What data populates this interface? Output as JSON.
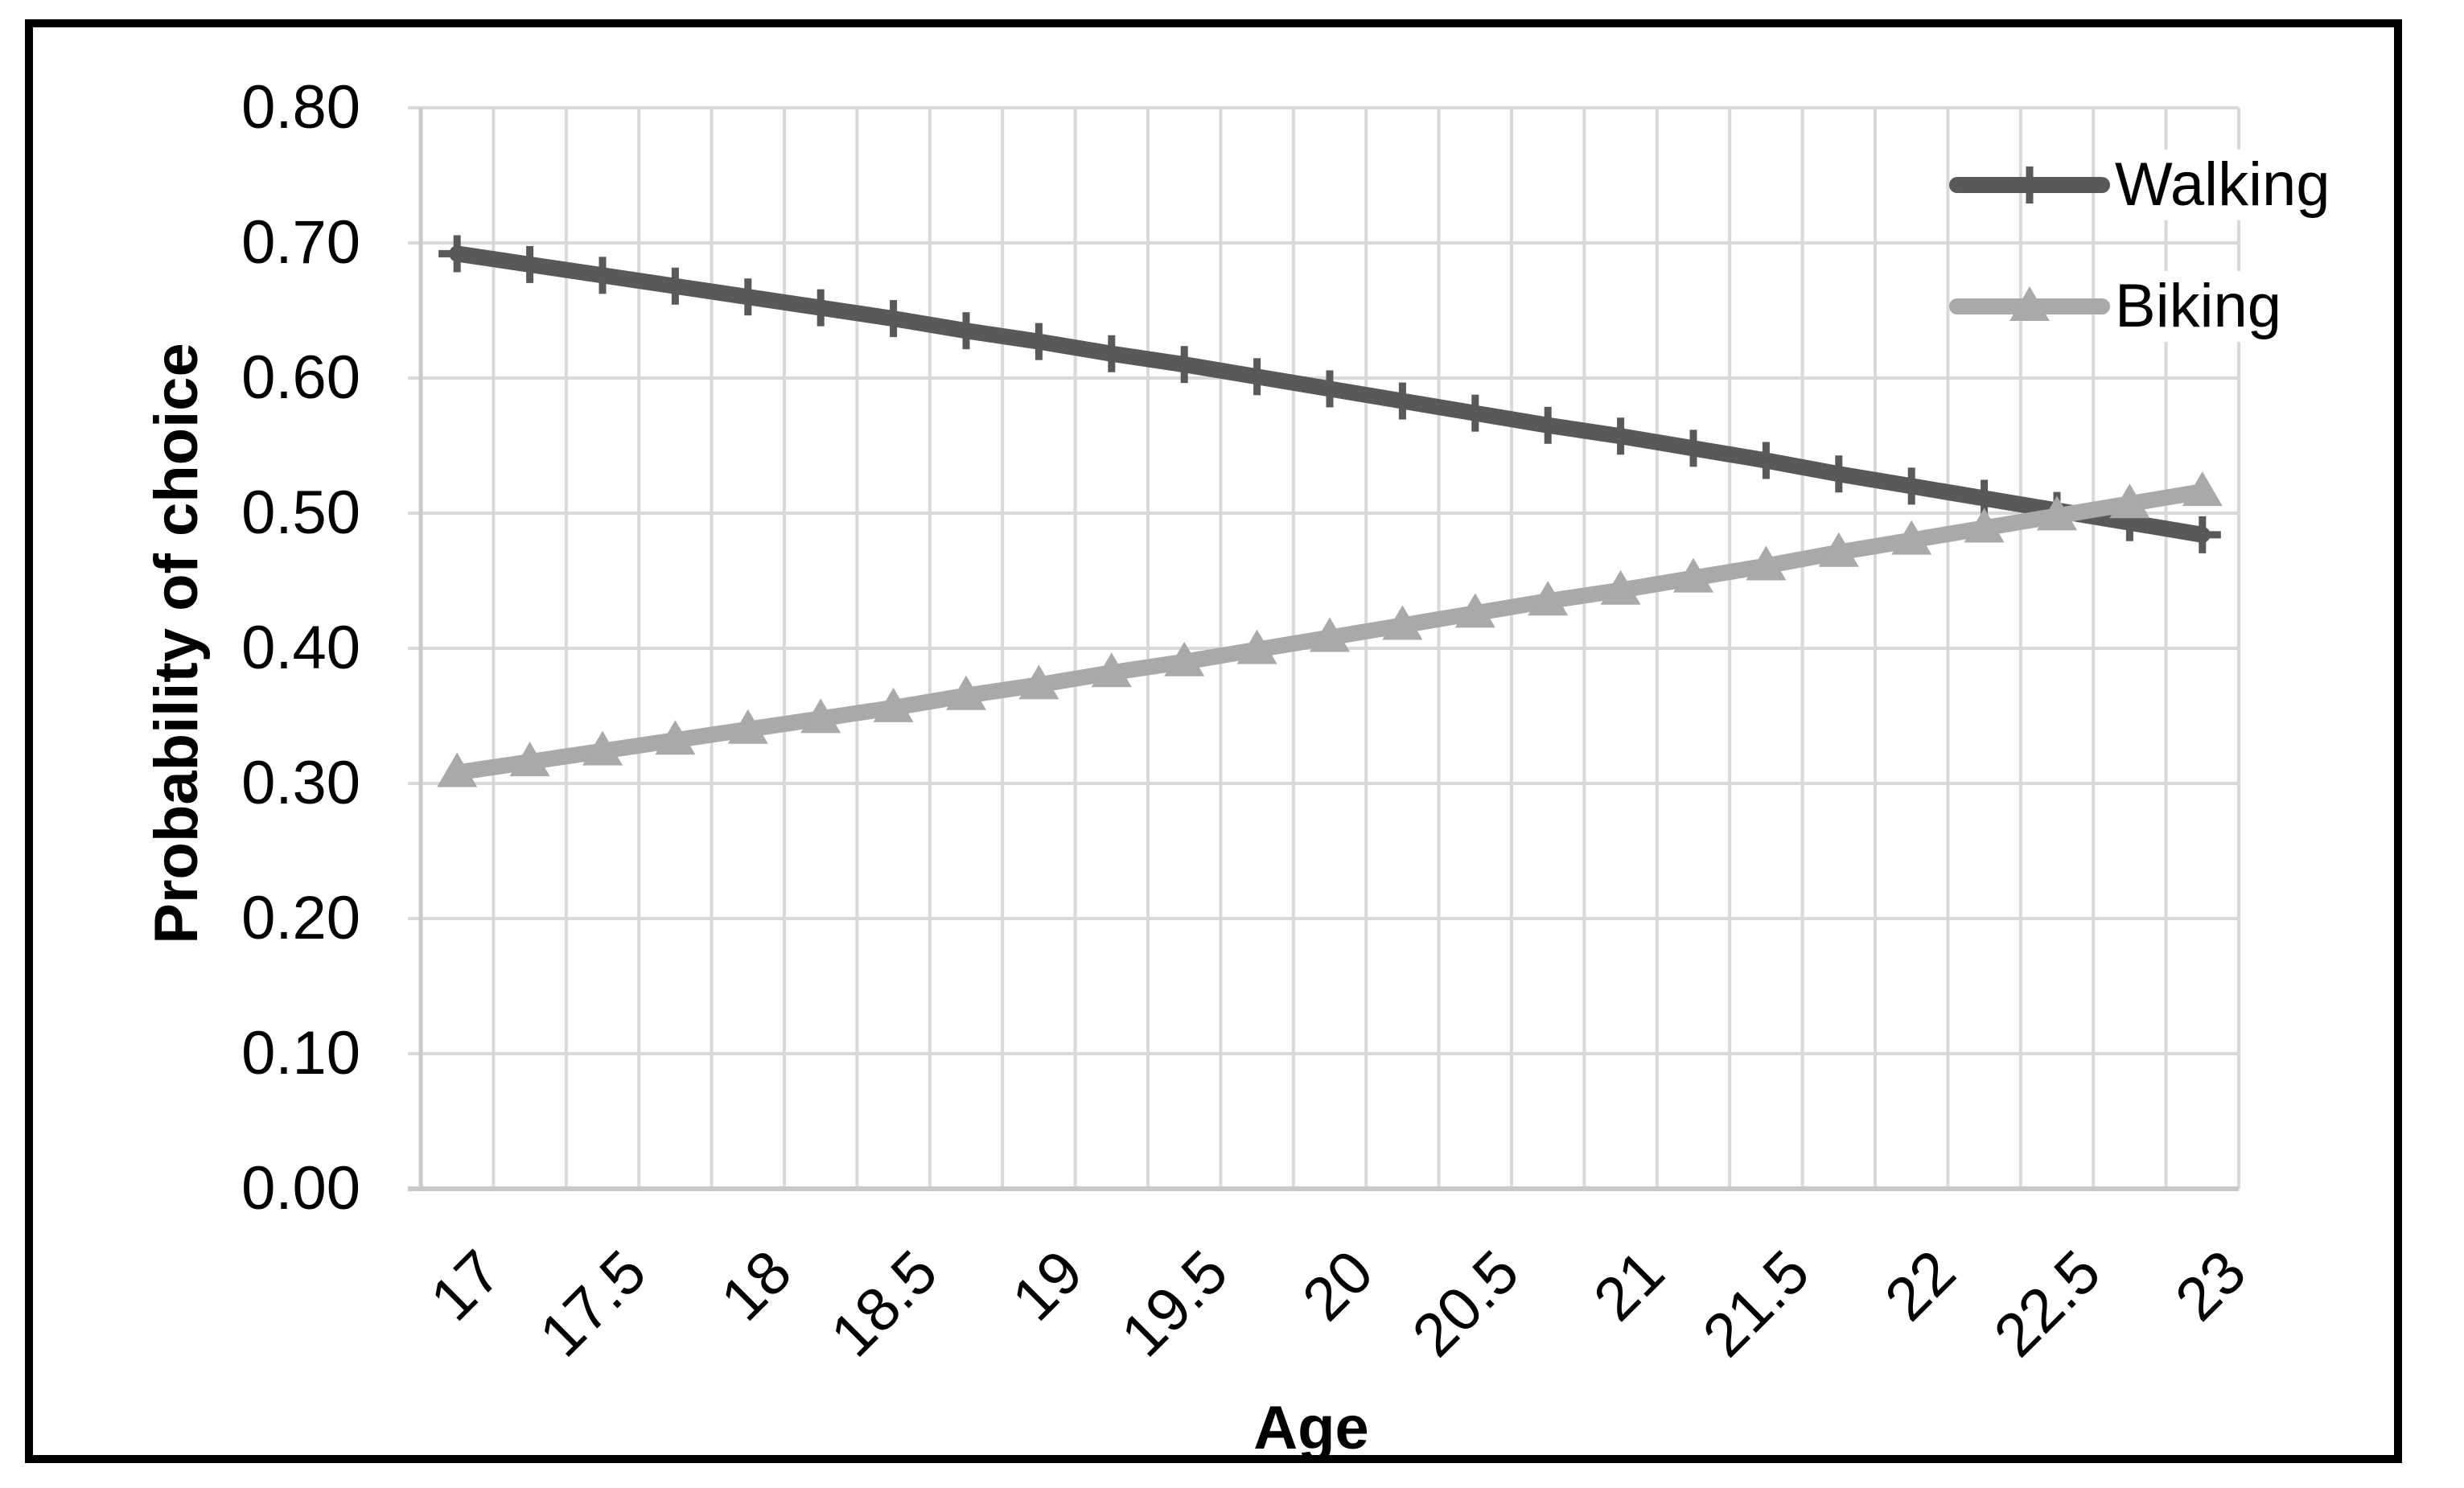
{
  "colors": {
    "background": "#ffffff",
    "border": "#000000",
    "text": "#000000",
    "gridline": "#d9d9d9",
    "axis_line": "#c9c9c9",
    "walking": "#595959",
    "biking": "#a9a9a9"
  },
  "legend": {
    "walking_label": "Walking",
    "biking_label": "Biking"
  },
  "chart_data": {
    "type": "line",
    "title": "",
    "xlabel": "Age",
    "ylabel": "Probability of choice",
    "xlim": [
      17,
      23
    ],
    "ylim": [
      0.0,
      0.8
    ],
    "grid": true,
    "x_grid_step": 0.25,
    "y_grid_step": 0.1,
    "legend_position": "top-right-inside",
    "x_tick_labels": [
      "17",
      "17.5",
      "18",
      "18.5",
      "19",
      "19.5",
      "20",
      "20.5",
      "21",
      "21.5",
      "22",
      "22.5",
      "23"
    ],
    "y_tick_labels": [
      "0.00",
      "0.10",
      "0.20",
      "0.30",
      "0.40",
      "0.50",
      "0.60",
      "0.70",
      "0.80"
    ],
    "x": [
      17,
      17.25,
      17.5,
      17.75,
      18,
      18.25,
      18.5,
      18.75,
      19,
      19.25,
      19.5,
      19.75,
      20,
      20.25,
      20.5,
      20.75,
      21,
      21.25,
      21.5,
      21.75,
      22,
      22.25,
      22.5,
      22.75,
      23
    ],
    "series": [
      {
        "name": "Walking",
        "color": "#595959",
        "marker": "plus",
        "values": [
          0.692,
          0.684,
          0.676,
          0.668,
          0.66,
          0.652,
          0.644,
          0.635,
          0.627,
          0.618,
          0.61,
          0.601,
          0.592,
          0.583,
          0.574,
          0.565,
          0.557,
          0.548,
          0.539,
          0.529,
          0.52,
          0.511,
          0.502,
          0.493,
          0.484
        ]
      },
      {
        "name": "Biking",
        "color": "#a9a9a9",
        "marker": "triangle",
        "values": [
          0.308,
          0.316,
          0.324,
          0.332,
          0.34,
          0.348,
          0.356,
          0.365,
          0.373,
          0.382,
          0.39,
          0.399,
          0.408,
          0.417,
          0.426,
          0.435,
          0.443,
          0.452,
          0.461,
          0.471,
          0.48,
          0.489,
          0.498,
          0.507,
          0.516
        ]
      }
    ]
  }
}
